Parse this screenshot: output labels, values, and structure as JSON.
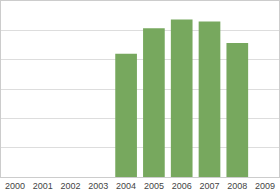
{
  "chart_data": {
    "type": "bar",
    "categories": [
      "2000",
      "2001",
      "2002",
      "2003",
      "2004",
      "2005",
      "2006",
      "2007",
      "2008",
      "2009"
    ],
    "values": [
      null,
      null,
      null,
      null,
      4.2,
      5.07,
      5.37,
      5.3,
      4.57,
      null
    ],
    "color": "#77a85e",
    "ylim": [
      0,
      6
    ],
    "yticks": [
      0,
      1,
      2,
      3,
      4,
      5,
      6
    ],
    "grid": true,
    "tick_labels": "x"
  }
}
